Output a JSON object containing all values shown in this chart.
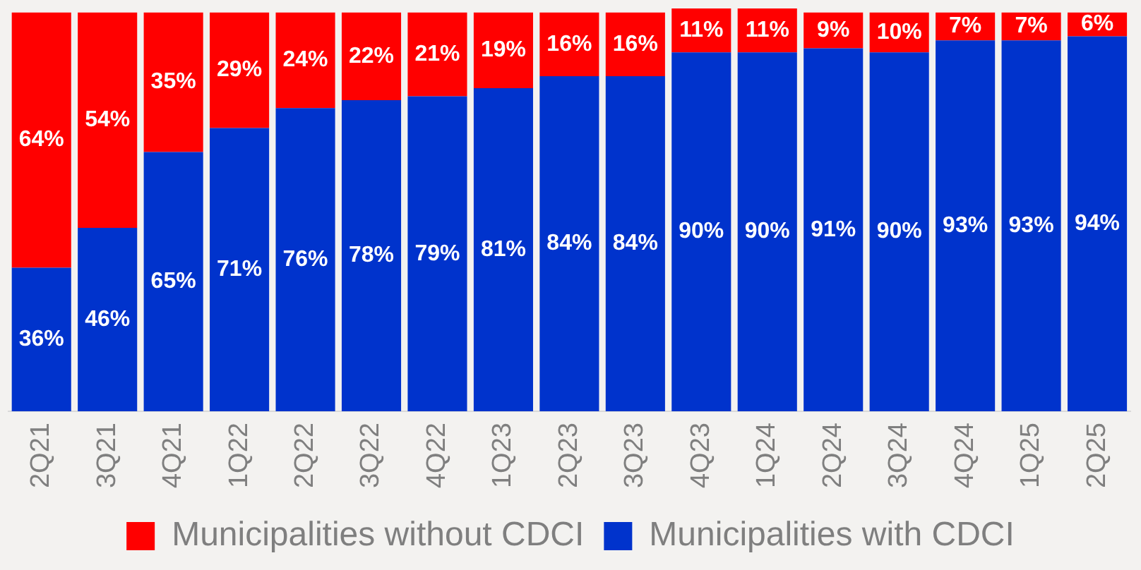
{
  "chart_data": {
    "type": "bar",
    "stacked": true,
    "legend": "bottom",
    "grid": false,
    "tick_labels": "x",
    "categories": [
      "2Q21",
      "3Q21",
      "4Q21",
      "1Q22",
      "2Q22",
      "3Q22",
      "4Q22",
      "1Q23",
      "2Q23",
      "3Q23",
      "4Q23",
      "1Q24",
      "2Q24",
      "3Q24",
      "4Q24",
      "1Q25",
      "2Q25"
    ],
    "series": [
      {
        "name": "Municipalities with CDCI",
        "color": "#0033cc",
        "values": [
          36,
          46,
          65,
          71,
          76,
          78,
          79,
          81,
          84,
          84,
          90,
          90,
          91,
          90,
          93,
          93,
          94
        ],
        "value_labels": [
          "36%",
          "46%",
          "65%",
          "71%",
          "76%",
          "78%",
          "79%",
          "81%",
          "84%",
          "84%",
          "90%",
          "90%",
          "91%",
          "90%",
          "93%",
          "93%",
          "94%"
        ]
      },
      {
        "name": "Municipalities without CDCI",
        "color": "#ff0000",
        "values": [
          64,
          54,
          35,
          29,
          24,
          22,
          21,
          19,
          16,
          16,
          11,
          11,
          9,
          10,
          7,
          7,
          6
        ],
        "value_labels": [
          "64%",
          "54%",
          "35%",
          "29%",
          "24%",
          "22%",
          "21%",
          "19%",
          "16%",
          "16%",
          "11%",
          "11%",
          "9%",
          "10%",
          "7%",
          "7%",
          "6%"
        ]
      }
    ]
  }
}
